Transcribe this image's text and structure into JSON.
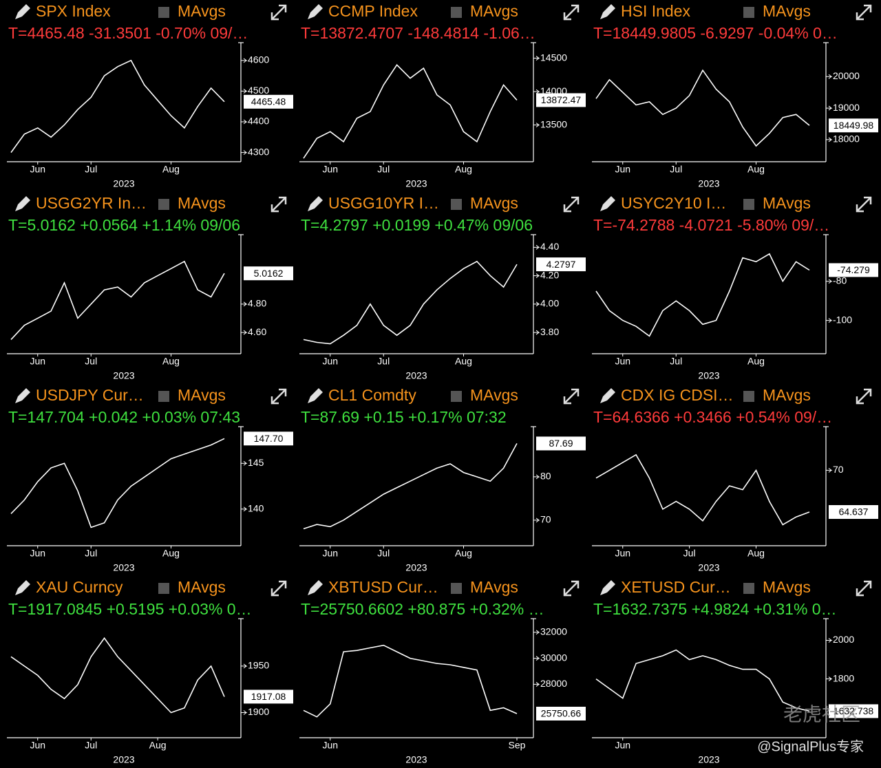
{
  "chart_data": [
    {
      "type": "line",
      "title": "SPX Index",
      "legend": "MAvgs",
      "ticker": "T=4465.48 -31.3501 -0.70% 09/…",
      "ticker_color": "#ff3b3b",
      "color": "#ffffff",
      "xlabel": "2023",
      "categories": [
        null,
        null,
        "Jun",
        null,
        null,
        null,
        "Jul",
        null,
        null,
        null,
        null,
        null,
        "Aug",
        null,
        null,
        null,
        null
      ],
      "values": [
        4300,
        4360,
        4380,
        4350,
        4390,
        4440,
        4480,
        4550,
        4580,
        4600,
        4520,
        4470,
        4420,
        4380,
        4450,
        4510,
        4465.48
      ],
      "value_labels": [
        null,
        null,
        null,
        null,
        null,
        null,
        null,
        null,
        null,
        null,
        null,
        null,
        null,
        null,
        null,
        null,
        "4465.48"
      ],
      "ylim": [
        4270,
        4640
      ],
      "yticks": [
        4300,
        4400,
        4500,
        4600
      ]
    },
    {
      "type": "line",
      "title": "CCMP Index",
      "legend": "MAvgs",
      "ticker": "T=13872.4707 -148.4814 -1.06…",
      "ticker_color": "#ff3b3b",
      "color": "#ffffff",
      "xlabel": "2023",
      "categories": [
        null,
        null,
        "Jun",
        null,
        null,
        null,
        "Jul",
        null,
        null,
        null,
        null,
        null,
        "Aug",
        null,
        null,
        null,
        null
      ],
      "values": [
        13000,
        13300,
        13400,
        13250,
        13600,
        13700,
        14100,
        14400,
        14200,
        14350,
        13950,
        13800,
        13400,
        13250,
        13700,
        14100,
        13872.47
      ],
      "value_labels": [
        null,
        null,
        null,
        null,
        null,
        null,
        null,
        null,
        null,
        null,
        null,
        null,
        null,
        null,
        null,
        null,
        "13872.47"
      ],
      "ylim": [
        12950,
        14650
      ],
      "yticks": [
        13500,
        14000,
        14500
      ]
    },
    {
      "type": "line",
      "title": "HSI Index",
      "legend": "MAvgs",
      "ticker": "T=18449.9805 -6.9297 -0.04% 0…",
      "ticker_color": "#ff3b3b",
      "color": "#ffffff",
      "xlabel": "2023",
      "categories": [
        null,
        null,
        "Jun",
        null,
        null,
        null,
        "Jul",
        null,
        null,
        null,
        null,
        null,
        "Aug",
        null,
        null,
        null,
        null
      ],
      "values": [
        19300,
        19900,
        19500,
        19100,
        19200,
        18800,
        19000,
        19400,
        20200,
        19600,
        19200,
        18400,
        17800,
        18200,
        18700,
        18800,
        18449.98
      ],
      "value_labels": [
        null,
        null,
        null,
        null,
        null,
        null,
        null,
        null,
        null,
        null,
        null,
        null,
        null,
        null,
        null,
        null,
        "18449.98"
      ],
      "ylim": [
        17300,
        20900
      ],
      "yticks": [
        18000,
        19000,
        20000
      ]
    },
    {
      "type": "line",
      "title": "USGG2YR In…",
      "legend": "MAvgs",
      "ticker": "T=5.0162 +0.0564 +1.14% 09/06",
      "ticker_color": "#3fe03f",
      "color": "#ffffff",
      "xlabel": "2023",
      "categories": [
        null,
        null,
        "Jun",
        null,
        null,
        null,
        "Jul",
        null,
        null,
        null,
        null,
        null,
        "Aug",
        null,
        null,
        null,
        null
      ],
      "values": [
        4.55,
        4.65,
        4.7,
        4.75,
        4.95,
        4.7,
        4.8,
        4.9,
        4.92,
        4.85,
        4.95,
        5.0,
        5.05,
        5.1,
        4.9,
        4.85,
        5.0162
      ],
      "value_labels": [
        null,
        null,
        null,
        null,
        null,
        null,
        null,
        null,
        null,
        null,
        null,
        null,
        null,
        null,
        null,
        null,
        "5.0162"
      ],
      "ylim": [
        4.45,
        5.25
      ],
      "yticks": [
        {
          "value": 4.6,
          "label": "4.60"
        },
        {
          "value": 4.8,
          "label": "4.80"
        }
      ]
    },
    {
      "type": "line",
      "title": "USGG10YR I…",
      "legend": "MAvgs",
      "ticker": "T=4.2797 +0.0199 +0.47% 09/06",
      "ticker_color": "#3fe03f",
      "color": "#ffffff",
      "xlabel": "2023",
      "categories": [
        null,
        null,
        "Jun",
        null,
        null,
        null,
        "Jul",
        null,
        null,
        null,
        null,
        null,
        "Aug",
        null,
        null,
        null,
        null
      ],
      "values": [
        3.75,
        3.73,
        3.72,
        3.78,
        3.85,
        4.0,
        3.85,
        3.78,
        3.85,
        4.0,
        4.1,
        4.18,
        4.25,
        4.3,
        4.2,
        4.12,
        4.2797
      ],
      "value_labels": [
        null,
        null,
        null,
        null,
        null,
        null,
        null,
        null,
        null,
        null,
        null,
        null,
        null,
        null,
        null,
        null,
        "4.2797"
      ],
      "ylim": [
        3.65,
        4.45
      ],
      "yticks": [
        {
          "value": 3.8,
          "label": "3.80"
        },
        {
          "value": 4.0,
          "label": "4.00"
        },
        {
          "value": 4.2,
          "label": "4.20"
        },
        {
          "value": 4.4,
          "label": "4.40"
        }
      ]
    },
    {
      "type": "line",
      "title": "USYC2Y10 I…",
      "legend": "MAvgs",
      "ticker": "T=-74.2788 -4.0721 -5.80% 09/…",
      "ticker_color": "#ff3b3b",
      "color": "#ffffff",
      "xlabel": "2023",
      "categories": [
        null,
        null,
        "Jun",
        null,
        null,
        null,
        "Jul",
        null,
        null,
        null,
        null,
        null,
        "Aug",
        null,
        null,
        null,
        null
      ],
      "values": [
        -85,
        -95,
        -100,
        -103,
        -108,
        -95,
        -90,
        -95,
        -102,
        -100,
        -85,
        -68,
        -70,
        -66,
        -80,
        -70,
        -74.2788
      ],
      "value_labels": [
        null,
        null,
        null,
        null,
        null,
        null,
        null,
        null,
        null,
        null,
        null,
        null,
        null,
        null,
        null,
        null,
        "-74.279"
      ],
      "ylim": [
        -117,
        -59
      ],
      "yticks": [
        -100,
        -80
      ]
    },
    {
      "type": "line",
      "title": "USDJPY Cur…",
      "legend": "MAvgs",
      "ticker": "T=147.704 +0.042 +0.03% 07:43",
      "ticker_color": "#3fe03f",
      "color": "#ffffff",
      "xlabel": "2023",
      "categories": [
        null,
        null,
        "Jun",
        null,
        null,
        null,
        "Jul",
        null,
        null,
        null,
        null,
        null,
        "Aug",
        null,
        null,
        null,
        null
      ],
      "values": [
        139.5,
        141,
        143,
        144.5,
        145,
        142,
        138,
        138.5,
        141,
        142.5,
        143.5,
        144.5,
        145.5,
        146,
        146.5,
        147,
        147.704
      ],
      "value_labels": [
        null,
        null,
        null,
        null,
        null,
        null,
        null,
        null,
        null,
        null,
        null,
        null,
        null,
        null,
        null,
        null,
        "147.70"
      ],
      "ylim": [
        136,
        148.4
      ],
      "yticks": [
        140,
        145
      ]
    },
    {
      "type": "line",
      "title": "CL1 Comdty",
      "legend": "MAvgs",
      "ticker": "T=87.69 +0.15 +0.17% 07:32",
      "ticker_color": "#3fe03f",
      "color": "#ffffff",
      "xlabel": "2023",
      "categories": [
        null,
        null,
        "Jun",
        null,
        null,
        null,
        "Jul",
        null,
        null,
        null,
        null,
        null,
        "Aug",
        null,
        null,
        null,
        null
      ],
      "values": [
        68,
        69,
        68.5,
        70,
        72,
        74,
        76,
        77.5,
        79,
        80.5,
        82,
        83,
        81,
        80,
        79,
        82,
        87.69
      ],
      "value_labels": [
        null,
        null,
        null,
        null,
        null,
        null,
        null,
        null,
        null,
        null,
        null,
        null,
        null,
        null,
        null,
        null,
        "87.69"
      ],
      "ylim": [
        64.1,
        90.3
      ],
      "yticks": [
        70,
        80
      ]
    },
    {
      "type": "line",
      "title": "CDX IG CDSI…",
      "legend": "MAvgs",
      "ticker": "T=64.6366 +0.3466 +0.54% 09/…",
      "ticker_color": "#ff3b3b",
      "color": "#ffffff",
      "xlabel": "2023",
      "categories": [
        null,
        null,
        "Jun",
        null,
        null,
        null,
        null,
        "Jul",
        null,
        null,
        null,
        null,
        "Aug",
        null,
        null,
        null,
        null
      ],
      "values": [
        69,
        70,
        71,
        72,
        69,
        65,
        66,
        65,
        63.5,
        66,
        68,
        67.5,
        70,
        66,
        63,
        64,
        64.6366
      ],
      "value_labels": [
        null,
        null,
        null,
        null,
        null,
        null,
        null,
        null,
        null,
        null,
        null,
        null,
        null,
        null,
        null,
        null,
        "64.637"
      ],
      "ylim": [
        60.3,
        74.9
      ],
      "yticks": [
        70
      ]
    },
    {
      "type": "line",
      "title": "XAU Curncy",
      "legend": "MAvgs",
      "ticker": "T=1917.0845 +0.5195 +0.03% 0…",
      "ticker_color": "#3fe03f",
      "color": "#ffffff",
      "xlabel": "2023",
      "categories": [
        null,
        null,
        "Jun",
        null,
        null,
        null,
        "Jul",
        null,
        null,
        null,
        null,
        "Aug",
        null,
        null,
        null,
        null,
        null
      ],
      "values": [
        1960,
        1950,
        1940,
        1925,
        1915,
        1930,
        1960,
        1980,
        1960,
        1945,
        1930,
        1915,
        1900,
        1905,
        1935,
        1950,
        1917.0845
      ],
      "value_labels": [
        null,
        null,
        null,
        null,
        null,
        null,
        null,
        null,
        null,
        null,
        null,
        null,
        null,
        null,
        null,
        null,
        "1917.08"
      ],
      "ylim": [
        1873,
        1995
      ],
      "yticks": [
        1900,
        1950
      ]
    },
    {
      "type": "line",
      "title": "XBTUSD Cur…",
      "legend": "MAvgs",
      "ticker": "T=25750.6602 +80.875 +0.32% …",
      "ticker_color": "#3fe03f",
      "color": "#ffffff",
      "xlabel": "2023",
      "categories": [
        null,
        null,
        "Jun",
        null,
        null,
        null,
        null,
        null,
        null,
        null,
        null,
        null,
        null,
        null,
        null,
        null,
        "Sep"
      ],
      "values": [
        26000,
        25500,
        26500,
        30500,
        30600,
        30800,
        31000,
        30500,
        30000,
        29800,
        29600,
        29500,
        29300,
        29100,
        26000,
        26200,
        25750.6602
      ],
      "value_labels": [
        null,
        null,
        null,
        null,
        null,
        null,
        null,
        null,
        null,
        null,
        null,
        null,
        null,
        null,
        null,
        null,
        "25750.66"
      ],
      "ylim": [
        23900,
        32620
      ],
      "yticks": [
        28000,
        30000,
        32000
      ]
    },
    {
      "type": "line",
      "title": "XETUSD Cur…",
      "legend": "MAvgs",
      "ticker": "T=1632.7375 +4.9824 +0.31% 0…",
      "ticker_color": "#3fe03f",
      "color": "#ffffff",
      "xlabel": "2023",
      "categories": [
        null,
        null,
        "Jun",
        null,
        null,
        null,
        null,
        null,
        null,
        null,
        null,
        null,
        null,
        null,
        null,
        null,
        null
      ],
      "values": [
        1800,
        1750,
        1700,
        1880,
        1900,
        1920,
        1950,
        1900,
        1920,
        1900,
        1870,
        1850,
        1850,
        1800,
        1680,
        1650,
        1632.7375
      ],
      "value_labels": [
        null,
        null,
        null,
        null,
        null,
        null,
        null,
        null,
        null,
        null,
        null,
        null,
        null,
        null,
        null,
        null,
        "1632.738"
      ],
      "ylim": [
        1495,
        2084
      ],
      "yticks": [
        1800,
        2000
      ]
    }
  ],
  "watermark": {
    "logo": "老虎社区",
    "credit": "@SignalPlus专家"
  }
}
